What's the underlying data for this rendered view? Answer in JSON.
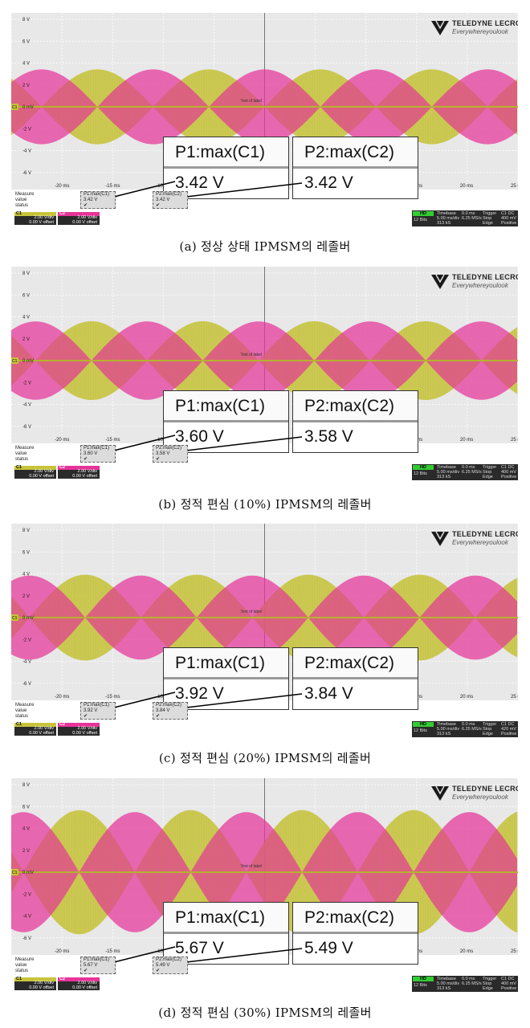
{
  "brand": {
    "name": "TELEDYNE LECROY",
    "tagline": "Everywhereyoulook"
  },
  "common": {
    "y_ticks": [
      "8 V",
      "6 V",
      "4 V",
      "2 V",
      "0 mV",
      "-2 V",
      "-4 V",
      "-6 V"
    ],
    "x_ticks": [
      "-20 ms",
      "-15 ms",
      "-10 ms",
      "-5 ms",
      "0 ms",
      "5 ms",
      "10 ms",
      "15 ms",
      "20 ms",
      "25 ms"
    ],
    "ch_marker": "C1",
    "text_label": "Text of label",
    "measure_labels": [
      "Measure",
      "value",
      "status"
    ],
    "check": "✔",
    "ch1": {
      "tab": "C1",
      "scale": "2.00 V/div",
      "offset": "0.00 V offset"
    },
    "ch2": {
      "tab": "C2",
      "scale": "2.00 V/div",
      "offset": "0.00 V offset"
    },
    "hd": "HD",
    "bits": "12 Bits",
    "timebase_label": "Timebase",
    "timebase_delay": "0.0 ms",
    "timebase_div": "5.00 ms/div",
    "timebase_samples": "313 kS",
    "timebase_rate": "6.25 MS/s",
    "trigger_label": "Trigger",
    "trigger_mode": "Stop",
    "trigger_type": "Edge",
    "trigger_slope": "Positive",
    "trigger_tag": "C1 DC"
  },
  "colors": {
    "c1": "#c8c43a",
    "c2": "#e6339a",
    "grid": "#ffffff",
    "bg": "#e8e8e8"
  },
  "panels": [
    {
      "caption": "(a) 정상 상태 IPMSM의 레졸버",
      "p1": {
        "label": "P1:max(C1)",
        "value": "3.42 V"
      },
      "p2": {
        "label": "P2:max(C2)",
        "value": "3.42 V"
      },
      "trigger_level": "400 mV"
    },
    {
      "caption": "(b) 정적 편심 (10%) IPMSM의 레졸버",
      "p1": {
        "label": "P1:max(C1)",
        "value": "3.60 V"
      },
      "p2": {
        "label": "P2:max(C2)",
        "value": "3.58 V"
      },
      "trigger_level": "400 mV"
    },
    {
      "caption": "(c) 정적 편심 (20%) IPMSM의 레졸버",
      "p1": {
        "label": "P1:max(C1)",
        "value": "3.92 V"
      },
      "p2": {
        "label": "P2:max(C2)",
        "value": "3.84 V"
      },
      "trigger_level": "420 mV"
    },
    {
      "caption": "(d) 정적 편심 (30%) IPMSM의 레졸버",
      "p1": {
        "label": "P1:max(C1)",
        "value": "5.67 V"
      },
      "p2": {
        "label": "P2:max(C2)",
        "value": "5.49 V"
      },
      "trigger_level": "400 mV"
    }
  ],
  "chart_data": [
    {
      "type": "line",
      "x_unit": "ms",
      "y_unit": "V",
      "xlim": [
        -25,
        25
      ],
      "ylim": [
        -8,
        8
      ],
      "grid": true,
      "series": [
        {
          "name": "C1",
          "max": 3.42
        },
        {
          "name": "C2",
          "max": 3.42
        }
      ]
    },
    {
      "type": "line",
      "x_unit": "ms",
      "y_unit": "V",
      "xlim": [
        -25,
        25
      ],
      "ylim": [
        -8,
        8
      ],
      "grid": true,
      "series": [
        {
          "name": "C1",
          "max": 3.6
        },
        {
          "name": "C2",
          "max": 3.58
        }
      ]
    },
    {
      "type": "line",
      "x_unit": "ms",
      "y_unit": "V",
      "xlim": [
        -25,
        25
      ],
      "ylim": [
        -8,
        8
      ],
      "grid": true,
      "series": [
        {
          "name": "C1",
          "max": 3.92
        },
        {
          "name": "C2",
          "max": 3.84
        }
      ]
    },
    {
      "type": "line",
      "x_unit": "ms",
      "y_unit": "V",
      "xlim": [
        -25,
        25
      ],
      "ylim": [
        -8,
        8
      ],
      "grid": true,
      "series": [
        {
          "name": "C1",
          "max": 5.67
        },
        {
          "name": "C2",
          "max": 5.49
        }
      ]
    }
  ]
}
